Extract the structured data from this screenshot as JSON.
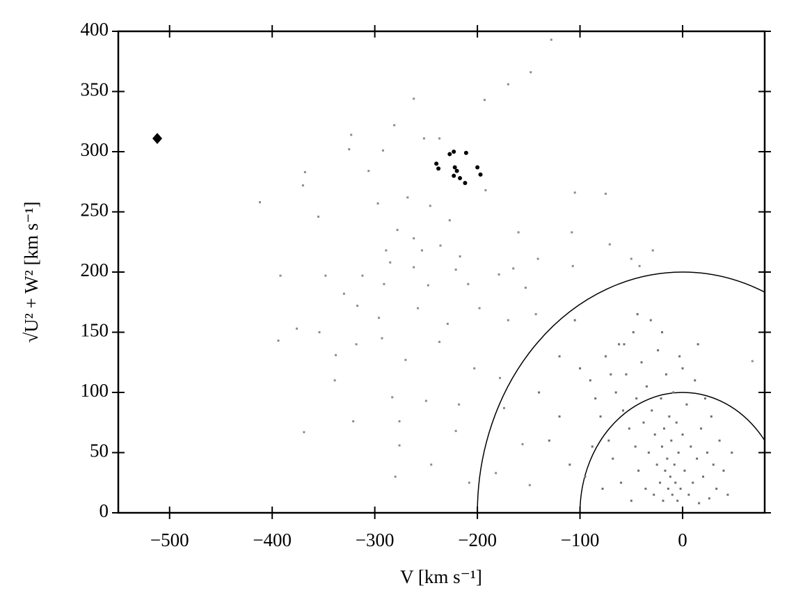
{
  "chart_data": {
    "type": "scatter",
    "xlabel": "V [km s⁻¹]",
    "ylabel": "√U² + W² [km s⁻¹]",
    "xlim": [
      -550,
      80
    ],
    "ylim": [
      0,
      400
    ],
    "xticks": [
      {
        "value": -500,
        "label": "−500"
      },
      {
        "value": -400,
        "label": "−400"
      },
      {
        "value": -300,
        "label": "−300"
      },
      {
        "value": -200,
        "label": "−200"
      },
      {
        "value": -100,
        "label": "−100"
      },
      0
    ],
    "yticks": [
      0,
      50,
      100,
      150,
      200,
      250,
      300,
      350,
      400
    ],
    "circles": [
      {
        "radius": 100,
        "color": "#000000"
      },
      {
        "radius": 200,
        "color": "#000000"
      }
    ],
    "series": [
      {
        "color": "#8c8c8c",
        "marker": "square",
        "x": [
          -128,
          -148,
          -170,
          -262,
          -193,
          -323,
          -252,
          -281,
          -237,
          -325,
          -292,
          -368,
          -306,
          -370,
          -268,
          -297,
          -412,
          -192,
          -105,
          -75,
          -246,
          -355,
          -227,
          -278,
          -236,
          -262,
          -254,
          -160,
          -108,
          -289,
          -217,
          -141,
          -71,
          -29,
          -312,
          -262,
          -285,
          -221,
          -179,
          -165,
          -107,
          -392,
          -348,
          -330,
          -291,
          -248,
          -209,
          -153,
          -50,
          -42,
          -317,
          -296,
          -258,
          -229,
          -198,
          -170,
          -143,
          -376,
          -354,
          -293,
          -237,
          -394,
          -318,
          -338,
          -270,
          -203,
          -178,
          -339,
          -283,
          -250,
          -218,
          -174,
          -276,
          -321,
          -369,
          -221,
          -156,
          -276,
          -245,
          -182,
          -149,
          -280,
          -208,
          68
        ],
        "values": [
          393,
          366,
          356,
          344,
          343,
          314,
          311,
          322,
          311,
          302,
          301,
          283,
          284,
          272,
          262,
          257,
          258,
          268,
          266,
          265,
          255,
          246,
          243,
          235,
          222,
          228,
          218,
          233,
          233,
          218,
          213,
          211,
          223,
          218,
          197,
          204,
          208,
          202,
          198,
          203,
          205,
          197,
          197,
          182,
          190,
          189,
          190,
          187,
          211,
          205,
          172,
          162,
          170,
          157,
          170,
          160,
          165,
          153,
          150,
          145,
          142,
          143,
          140,
          131,
          127,
          120,
          112,
          110,
          96,
          93,
          90,
          87,
          76,
          76,
          67,
          68,
          57,
          56,
          40,
          33,
          23,
          30,
          25,
          126
        ]
      },
      {
        "color": "#6e6e6e",
        "marker": "square",
        "x": [
          -100,
          -90,
          -85,
          -80,
          -75,
          -72,
          -68,
          -65,
          -62,
          -60,
          -58,
          -55,
          -52,
          -50,
          -48,
          -46,
          -45,
          -43,
          -40,
          -38,
          -36,
          -35,
          -33,
          -31,
          -30,
          -28,
          -27,
          -25,
          -24,
          -22,
          -21,
          -20,
          -19,
          -18,
          -17,
          -16,
          -15,
          -14,
          -13,
          -12,
          -11,
          -10,
          -9,
          -8,
          -7,
          -6,
          -5,
          -4,
          -3,
          -2,
          0,
          2,
          4,
          6,
          8,
          10,
          12,
          14,
          16,
          18,
          20,
          22,
          24,
          26,
          28,
          30,
          33,
          36,
          40,
          44,
          48,
          -120,
          -130,
          -140,
          -110,
          -95,
          -88,
          -78,
          -70,
          -57,
          -44,
          -20,
          0,
          15,
          -120,
          -105
        ],
        "values": [
          120,
          110,
          95,
          80,
          130,
          60,
          45,
          100,
          140,
          25,
          85,
          115,
          70,
          10,
          150,
          55,
          95,
          35,
          125,
          75,
          20,
          105,
          50,
          160,
          85,
          15,
          65,
          40,
          135,
          25,
          95,
          55,
          10,
          70,
          35,
          115,
          45,
          20,
          80,
          30,
          60,
          15,
          100,
          40,
          25,
          75,
          10,
          50,
          130,
          20,
          65,
          35,
          90,
          15,
          55,
          25,
          110,
          45,
          8,
          70,
          30,
          95,
          50,
          12,
          80,
          40,
          20,
          60,
          35,
          15,
          50,
          80,
          60,
          100,
          40,
          30,
          55,
          20,
          115,
          140,
          165,
          150,
          120,
          140,
          130,
          160
        ]
      },
      {
        "color": "#000000",
        "marker": "dot",
        "x": [
          -240,
          -238,
          -227,
          -223,
          -211,
          -222,
          -220,
          -223,
          -217,
          -212,
          -200,
          -197
        ],
        "values": [
          290,
          286,
          298,
          300,
          299,
          287,
          284,
          280,
          278,
          274,
          287,
          281
        ]
      },
      {
        "color": "#000000",
        "marker": "diamond",
        "x": [
          -512
        ],
        "values": [
          311
        ]
      }
    ]
  }
}
